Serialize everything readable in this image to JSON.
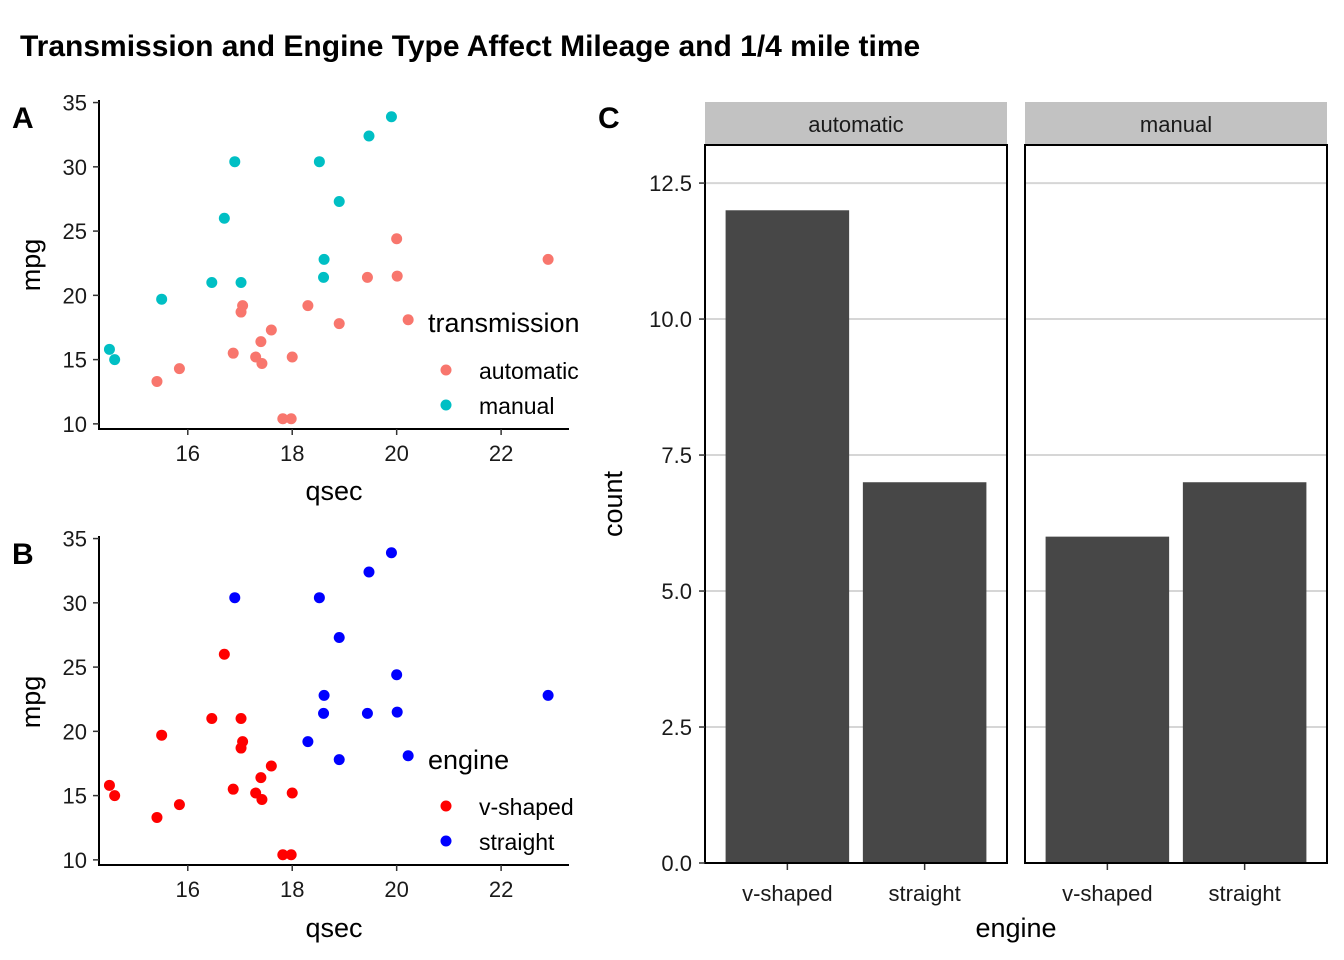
{
  "title": "Transmission and Engine Type Affect Mileage and 1/4 mile time",
  "colors": {
    "automatic": "#F8766D",
    "manual": "#00BFC4",
    "v-shaped": "#FF0000",
    "straight": "#0000FF",
    "bar": "#474747",
    "strip": "#C2C2C2",
    "grid": "#D6D6D6"
  },
  "chart_data": [
    {
      "tag": "A",
      "type": "scatter",
      "xlabel": "qsec",
      "ylabel": "mpg",
      "xlim": [
        14.3,
        23.3
      ],
      "ylim": [
        9.6,
        35.2
      ],
      "xticks": [
        16,
        18,
        20,
        22
      ],
      "yticks": [
        10,
        15,
        20,
        25,
        30,
        35
      ],
      "grid": false,
      "legend": {
        "title": "transmission",
        "position": "right-inside",
        "entries": [
          "automatic",
          "manual"
        ]
      },
      "points": [
        {
          "x": 16.46,
          "y": 21.0,
          "group": "manual"
        },
        {
          "x": 17.02,
          "y": 21.0,
          "group": "manual"
        },
        {
          "x": 18.61,
          "y": 22.8,
          "group": "manual"
        },
        {
          "x": 19.44,
          "y": 21.4,
          "group": "automatic"
        },
        {
          "x": 17.02,
          "y": 18.7,
          "group": "automatic"
        },
        {
          "x": 20.22,
          "y": 18.1,
          "group": "automatic"
        },
        {
          "x": 15.84,
          "y": 14.3,
          "group": "automatic"
        },
        {
          "x": 20.0,
          "y": 24.4,
          "group": "automatic"
        },
        {
          "x": 22.9,
          "y": 22.8,
          "group": "automatic"
        },
        {
          "x": 18.3,
          "y": 19.2,
          "group": "automatic"
        },
        {
          "x": 18.9,
          "y": 17.8,
          "group": "automatic"
        },
        {
          "x": 17.4,
          "y": 16.4,
          "group": "automatic"
        },
        {
          "x": 17.6,
          "y": 17.3,
          "group": "automatic"
        },
        {
          "x": 18.0,
          "y": 15.2,
          "group": "automatic"
        },
        {
          "x": 17.98,
          "y": 10.4,
          "group": "automatic"
        },
        {
          "x": 17.82,
          "y": 10.4,
          "group": "automatic"
        },
        {
          "x": 17.42,
          "y": 14.7,
          "group": "automatic"
        },
        {
          "x": 19.47,
          "y": 32.4,
          "group": "manual"
        },
        {
          "x": 18.52,
          "y": 30.4,
          "group": "manual"
        },
        {
          "x": 19.9,
          "y": 33.9,
          "group": "manual"
        },
        {
          "x": 20.01,
          "y": 21.5,
          "group": "automatic"
        },
        {
          "x": 16.87,
          "y": 15.5,
          "group": "automatic"
        },
        {
          "x": 17.3,
          "y": 15.2,
          "group": "automatic"
        },
        {
          "x": 15.41,
          "y": 13.3,
          "group": "automatic"
        },
        {
          "x": 17.05,
          "y": 19.2,
          "group": "automatic"
        },
        {
          "x": 18.9,
          "y": 27.3,
          "group": "manual"
        },
        {
          "x": 16.7,
          "y": 26.0,
          "group": "manual"
        },
        {
          "x": 16.9,
          "y": 30.4,
          "group": "manual"
        },
        {
          "x": 14.5,
          "y": 15.8,
          "group": "manual"
        },
        {
          "x": 15.5,
          "y": 19.7,
          "group": "manual"
        },
        {
          "x": 14.6,
          "y": 15.0,
          "group": "manual"
        },
        {
          "x": 18.6,
          "y": 21.4,
          "group": "manual"
        }
      ]
    },
    {
      "tag": "B",
      "type": "scatter",
      "xlabel": "qsec",
      "ylabel": "mpg",
      "xlim": [
        14.3,
        23.3
      ],
      "ylim": [
        9.6,
        35.2
      ],
      "xticks": [
        16,
        18,
        20,
        22
      ],
      "yticks": [
        10,
        15,
        20,
        25,
        30,
        35
      ],
      "grid": false,
      "legend": {
        "title": "engine",
        "position": "right-inside",
        "entries": [
          "v-shaped",
          "straight"
        ]
      },
      "points": [
        {
          "x": 16.46,
          "y": 21.0,
          "group": "v-shaped"
        },
        {
          "x": 17.02,
          "y": 21.0,
          "group": "v-shaped"
        },
        {
          "x": 18.61,
          "y": 22.8,
          "group": "straight"
        },
        {
          "x": 19.44,
          "y": 21.4,
          "group": "straight"
        },
        {
          "x": 17.02,
          "y": 18.7,
          "group": "v-shaped"
        },
        {
          "x": 20.22,
          "y": 18.1,
          "group": "straight"
        },
        {
          "x": 15.84,
          "y": 14.3,
          "group": "v-shaped"
        },
        {
          "x": 20.0,
          "y": 24.4,
          "group": "straight"
        },
        {
          "x": 22.9,
          "y": 22.8,
          "group": "straight"
        },
        {
          "x": 18.3,
          "y": 19.2,
          "group": "straight"
        },
        {
          "x": 18.9,
          "y": 17.8,
          "group": "straight"
        },
        {
          "x": 17.4,
          "y": 16.4,
          "group": "v-shaped"
        },
        {
          "x": 17.6,
          "y": 17.3,
          "group": "v-shaped"
        },
        {
          "x": 18.0,
          "y": 15.2,
          "group": "v-shaped"
        },
        {
          "x": 17.98,
          "y": 10.4,
          "group": "v-shaped"
        },
        {
          "x": 17.82,
          "y": 10.4,
          "group": "v-shaped"
        },
        {
          "x": 17.42,
          "y": 14.7,
          "group": "v-shaped"
        },
        {
          "x": 19.47,
          "y": 32.4,
          "group": "straight"
        },
        {
          "x": 18.52,
          "y": 30.4,
          "group": "straight"
        },
        {
          "x": 19.9,
          "y": 33.9,
          "group": "straight"
        },
        {
          "x": 20.01,
          "y": 21.5,
          "group": "straight"
        },
        {
          "x": 16.87,
          "y": 15.5,
          "group": "v-shaped"
        },
        {
          "x": 17.3,
          "y": 15.2,
          "group": "v-shaped"
        },
        {
          "x": 15.41,
          "y": 13.3,
          "group": "v-shaped"
        },
        {
          "x": 17.05,
          "y": 19.2,
          "group": "v-shaped"
        },
        {
          "x": 18.9,
          "y": 27.3,
          "group": "straight"
        },
        {
          "x": 16.7,
          "y": 26.0,
          "group": "v-shaped"
        },
        {
          "x": 16.9,
          "y": 30.4,
          "group": "straight"
        },
        {
          "x": 14.5,
          "y": 15.8,
          "group": "v-shaped"
        },
        {
          "x": 15.5,
          "y": 19.7,
          "group": "v-shaped"
        },
        {
          "x": 14.6,
          "y": 15.0,
          "group": "v-shaped"
        },
        {
          "x": 18.6,
          "y": 21.4,
          "group": "straight"
        }
      ]
    },
    {
      "tag": "C",
      "type": "bar",
      "facets": [
        "automatic",
        "manual"
      ],
      "categories": [
        "v-shaped",
        "straight"
      ],
      "series": [
        {
          "facet": "automatic",
          "values": [
            12,
            7
          ]
        },
        {
          "facet": "manual",
          "values": [
            6,
            7
          ]
        }
      ],
      "xlabel": "engine",
      "ylabel": "count",
      "ylim": [
        0,
        13.2
      ],
      "yticks": [
        0.0,
        2.5,
        5.0,
        7.5,
        10.0,
        12.5
      ],
      "ytick_labels": [
        "0.0",
        "2.5",
        "5.0",
        "7.5",
        "10.0",
        "12.5"
      ],
      "grid": true
    }
  ]
}
